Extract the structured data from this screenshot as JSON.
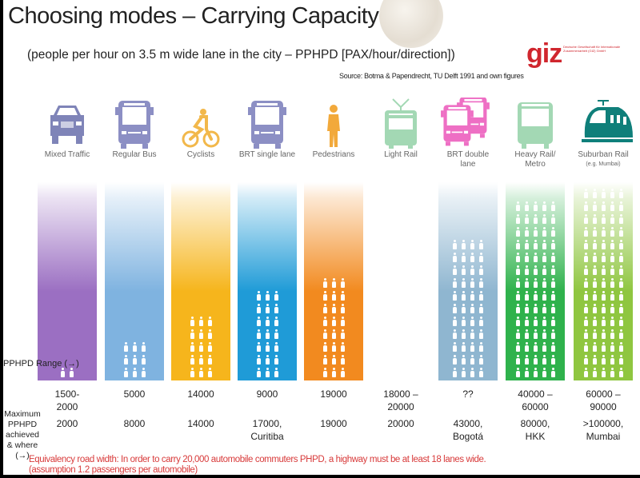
{
  "title": "Choosing modes – Carrying Capacity",
  "subtitle": "(people per hour on 3.5 m wide lane in the city – PPHPD [PAX/hour/direction])",
  "logo": {
    "text": "giz",
    "small_text": "Deutsche Gesellschaft für Internationale Zusammenarbeit (GIZ) GmbH",
    "color": "#d0262e"
  },
  "source": "Source: Botma & Papendrecht, TU Delft 1991 and own figures",
  "row_labels": {
    "range": "PPHPD Range (→)",
    "max": "Maximum PPHPD achieved & where (→)"
  },
  "modes": [
    {
      "label": "Mixed Traffic",
      "icon": "car-icon",
      "icon_color": "#7f84b8",
      "bar_color": "#9b6fc2",
      "figure_rows": 1,
      "figures_per_row": 2,
      "range": "1500-\n2000",
      "max": "2000"
    },
    {
      "label": "Regular Bus",
      "icon": "bus-icon",
      "icon_color": "#8c8fc4",
      "bar_color": "#7fb3e0",
      "figure_rows": 3,
      "figures_per_row": 3,
      "range": "5000",
      "max": "8000"
    },
    {
      "label": "Cyclists",
      "icon": "bicycle-icon",
      "icon_color": "#f2b84b",
      "bar_color": "#f6b51c",
      "figure_rows": 5,
      "figures_per_row": 3,
      "range": "14000",
      "max": "14000"
    },
    {
      "label": "BRT single lane",
      "icon": "bus-icon",
      "icon_color": "#8c8fc4",
      "bar_color": "#1f9bd7",
      "figure_rows": 7,
      "figures_per_row": 3,
      "range": "9000",
      "max": "17000,\nCuritiba"
    },
    {
      "label": "Pedestrians",
      "icon": "pedestrian-icon",
      "icon_color": "#f2a93b",
      "bar_color": "#f28a1f",
      "figure_rows": 8,
      "figures_per_row": 3,
      "range": "19000",
      "max": "19000"
    },
    {
      "label": "Light Rail",
      "icon": "tram-icon",
      "icon_color": "#a3d8b4",
      "bar_color": "",
      "figure_rows": 0,
      "figures_per_row": 0,
      "range": "18000 –\n20000",
      "max": "20000"
    },
    {
      "label": "BRT double lane",
      "icon": "double-bus-icon",
      "icon_color": "#ee6fc4",
      "bar_color": "#8fb6d0",
      "figure_rows": 11,
      "figures_per_row": 4,
      "range": "??",
      "max": "43000,\nBogotá"
    },
    {
      "label": "Heavy Rail/ Metro",
      "icon": "metro-icon",
      "icon_color": "#a3d8b4",
      "bar_color": "#2fb24c",
      "figure_rows": 14,
      "figures_per_row": 5,
      "range": "40000 –\n60000",
      "max": "80000,\nHKK"
    },
    {
      "label": "Suburban Rail",
      "sublabel": "(e.g. Mumbai)",
      "icon": "train-icon",
      "icon_color": "#0f7f7a",
      "bar_color": "#8fc640",
      "figure_rows": 15,
      "figures_per_row": 5,
      "range": "60000 –\n90000",
      "max": ">100000,\nMumbai"
    }
  ],
  "note": "Equivalency road width: In order to carry 20,000 automobile commuters PHPD, a highway must be at least 18 lanes wide.\n(assumption 1.2 passengers per automobile)"
}
